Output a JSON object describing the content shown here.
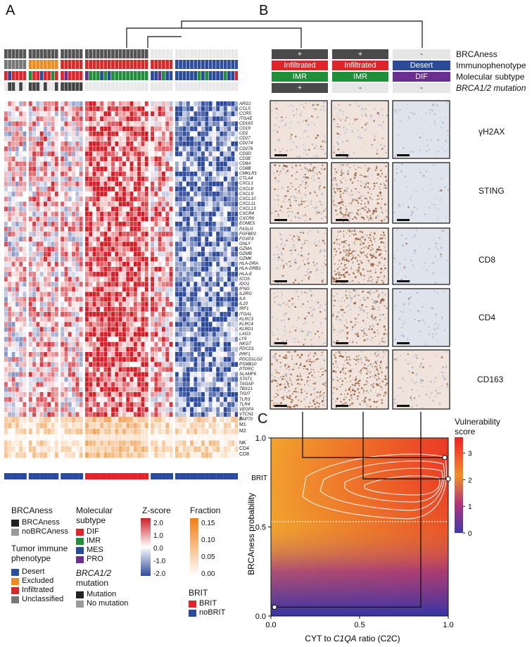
{
  "panel_labels": {
    "a": "A",
    "b": "B",
    "c": "C"
  },
  "heatmap": {
    "genes": [
      "ARG1",
      "CCL5",
      "CCR5",
      "ITGAE",
      "CD163",
      "CD19",
      "CD2",
      "CD27",
      "CD274",
      "CD276",
      "CD3D",
      "CD3E",
      "CD8A",
      "CD8B",
      "CMKLR1",
      "CTLA4",
      "CXCL1",
      "CXCL8",
      "CXCL9",
      "CXCL10",
      "CXCL11",
      "CXCL13",
      "CXCR4",
      "CXCR6",
      "EOMES",
      "FASLG",
      "FGFBP2",
      "FOXP3",
      "GNLY",
      "GZMA",
      "GZMB",
      "GZMK",
      "HLA-DRA",
      "HLA-DRB1",
      "HLA-E",
      "ICOS",
      "IDO1",
      "IFNG",
      "IL2RG",
      "IL6",
      "IL10",
      "IRF1",
      "ITGAL",
      "KLRC3",
      "KLRC4",
      "KLRD1",
      "LAG3",
      "LY9",
      "NKG7",
      "PDCD1",
      "PRF1",
      "PDCD1LG2",
      "PSMB10",
      "PTPRC",
      "SLAMF6",
      "STAT1",
      "TAGAP",
      "TBX21",
      "TIGIT",
      "TLR3",
      "TLR4",
      "VEGFA",
      "VTCN1",
      "ZAP70"
    ],
    "fraction_rows": [
      "B",
      "M1",
      "M2",
      "",
      "NK",
      "CD4",
      "CD8"
    ]
  },
  "legend": {
    "brcaness": {
      "title": "BRCAness",
      "items": [
        {
          "label": "BRCAness",
          "color": "#222222"
        },
        {
          "label": "noBRCAness",
          "color": "#9a9a9a"
        }
      ]
    },
    "immune": {
      "title": "Tumor immune phenotype",
      "items": [
        {
          "label": "Desert",
          "color": "#2f4f9e"
        },
        {
          "label": "Excluded",
          "color": "#f08c1e"
        },
        {
          "label": "Infiltrated",
          "color": "#d62a2a"
        },
        {
          "label": "Unclassified",
          "color": "#777777"
        }
      ]
    },
    "molecular": {
      "title": "Molecular subtype",
      "items": [
        {
          "label": "DIF",
          "color": "#e0242b"
        },
        {
          "label": "IMR",
          "color": "#1f8f3a"
        },
        {
          "label": "MES",
          "color": "#2c4a9a"
        },
        {
          "label": "PRO",
          "color": "#6a2f8f"
        }
      ]
    },
    "brca12": {
      "title": "BRCA1/2",
      "title2": "mutation",
      "items": [
        {
          "label": "Mutation",
          "color": "#222222"
        },
        {
          "label": "No mutation",
          "color": "#9a9a9a"
        }
      ]
    },
    "zscore": {
      "title": "Z-score",
      "ticks": [
        "2.0",
        "1.0",
        "0.0",
        "-1.0",
        "-2.0"
      ]
    },
    "fraction": {
      "title": "Fraction",
      "ticks": [
        "0.15",
        "0.10",
        "0.05",
        "0.00"
      ]
    },
    "brit": {
      "title": "BRIT",
      "items": [
        {
          "label": "BRIT",
          "color": "#e0242b"
        },
        {
          "label": "noBRIT",
          "color": "#2c4a9a"
        }
      ]
    }
  },
  "panel_b": {
    "row_labels": [
      "BRCAness",
      "Immunophenotype",
      "Molecular subtype",
      "BRCA1/2 mutation"
    ],
    "columns": [
      {
        "brcaness": "+",
        "immuno": "Infiltrated",
        "subtype": "IMR",
        "mutation": "+"
      },
      {
        "brcaness": "+",
        "immuno": "Infiltrated",
        "subtype": "IMR",
        "mutation": "-"
      },
      {
        "brcaness": "-",
        "immuno": "Desert",
        "subtype": "DIF",
        "mutation": "-"
      }
    ],
    "ihc_markers": [
      "γH2AX",
      "STING",
      "CD8",
      "CD4",
      "CD163"
    ],
    "colors": {
      "plus": "#4a4a4a",
      "minus": "#e6e6e6",
      "infiltrated": "#e0242b",
      "desert": "#2c4a9a",
      "imr": "#1f8f3a",
      "dif": "#6a2f8f"
    }
  },
  "chart_data": {
    "type": "heatmap",
    "title": "",
    "xlabel_pre": "CYT to ",
    "xlabel_ital": "C1QA",
    "xlabel_post": " ratio (C2C)",
    "ylabel": "BRCAness probability",
    "xlim": [
      0,
      1
    ],
    "ylim": [
      0,
      1
    ],
    "xticks": [
      "0.0",
      "0.5",
      "1.0"
    ],
    "yticks": [
      "0.0",
      "0.5",
      "1.0"
    ],
    "threshold_label": "BRIT",
    "threshold_y": 0.53,
    "colorbar": {
      "title": "Vulnerability score",
      "ticks": [
        "3",
        "2",
        "1",
        "0"
      ],
      "range": [
        0,
        3.6
      ]
    },
    "points": [
      {
        "x": 0.98,
        "y": 0.89
      },
      {
        "x": 1.0,
        "y": 0.77
      },
      {
        "x": 0.02,
        "y": 0.05
      }
    ]
  }
}
